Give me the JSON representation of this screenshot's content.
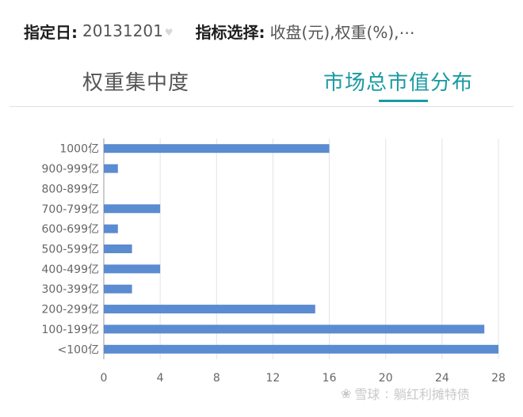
{
  "filter": {
    "date_label": "指定日:",
    "date_value": "20131201",
    "indicator_label": "指标选择:",
    "indicator_value": "收盘(元),权重(%),⋯"
  },
  "tabs": [
    {
      "label": "权重集中度",
      "active": false
    },
    {
      "label": "市场总市值分布",
      "active": true
    }
  ],
  "colors": {
    "bar": "#5b8bd0",
    "accent": "#1a9aa2",
    "grid": "#e3e3e3"
  },
  "watermark": {
    "logo": "❀",
    "brand": "雪球",
    "author": "躺红利摊特债"
  },
  "chart_data": {
    "type": "bar",
    "orientation": "horizontal",
    "categories": [
      "1000亿",
      "900-999亿",
      "800-899亿",
      "700-799亿",
      "600-699亿",
      "500-599亿",
      "400-499亿",
      "300-399亿",
      "200-299亿",
      "100-199亿",
      "<100亿"
    ],
    "values": [
      16,
      1,
      0,
      4,
      1,
      2,
      4,
      2,
      15,
      27,
      28
    ],
    "xlim": [
      0,
      28
    ],
    "xticks": [
      0,
      4,
      8,
      12,
      16,
      20,
      24,
      28
    ],
    "grid": true,
    "title": "",
    "xlabel": "",
    "ylabel": ""
  }
}
